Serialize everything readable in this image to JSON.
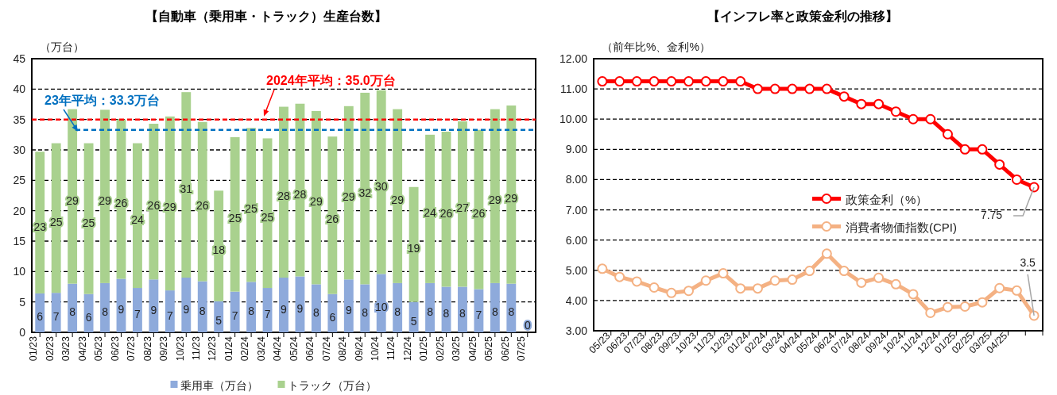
{
  "chart_data": [
    {
      "type": "bar",
      "title": "【自動車（乗用車・トラック）生産台数】",
      "ylabel": "（万台）",
      "stacked": true,
      "grid": "y",
      "legend": "bottom",
      "categories": [
        "01/23",
        "02/23",
        "03/23",
        "04/23",
        "05/23",
        "06/23",
        "07/23",
        "08/23",
        "09/23",
        "10/23",
        "11/23",
        "12/23",
        "01/24",
        "02/24",
        "03/24",
        "04/24",
        "05/24",
        "06/24",
        "07/24",
        "08/24",
        "09/24",
        "10/24",
        "11/24",
        "12/24",
        "01/25",
        "02/25",
        "03/25",
        "04/25",
        "05/25",
        "06/25",
        "07/25"
      ],
      "ylim": [
        0,
        45
      ],
      "yticks": [
        0,
        5,
        10,
        15,
        20,
        25,
        30,
        35,
        40,
        45
      ],
      "series": [
        {
          "name": "乗用車（万台）",
          "color": "#8eaadb",
          "values": [
            6.4,
            6.5,
            8.0,
            6.3,
            8.1,
            8.8,
            7.3,
            8.7,
            6.9,
            9.0,
            8.4,
            5.1,
            6.7,
            8.3,
            7.3,
            9.0,
            9.2,
            7.9,
            6.3,
            8.7,
            7.9,
            9.6,
            8.1,
            5.0,
            8.1,
            7.5,
            7.5,
            7.1,
            8.1,
            8.0,
            0
          ],
          "value_labels": [
            "6",
            "7",
            "8",
            "6",
            "8",
            "9",
            "7",
            "9",
            "7",
            "9",
            "8",
            "5",
            "7",
            "8",
            "7",
            "9",
            "9",
            "8",
            "6",
            "9",
            "8",
            "10",
            "8",
            "5",
            "8",
            "8",
            "8",
            "7",
            "8",
            "8",
            "0"
          ]
        },
        {
          "name": "トラック（万台）",
          "color": "#a9d18e",
          "values": [
            23.3,
            24.6,
            28.7,
            24.8,
            28.5,
            26.2,
            23.8,
            25.6,
            28.6,
            30.5,
            26.2,
            18.2,
            25.4,
            25.3,
            24.6,
            28.1,
            28.4,
            28.5,
            25.9,
            28.5,
            31.5,
            30.2,
            28.6,
            18.9,
            24.4,
            25.5,
            27.2,
            26.2,
            28.6,
            29.3,
            null
          ],
          "value_labels": [
            "23",
            "25",
            "29",
            "25",
            "29",
            "26",
            "24",
            "26",
            "29",
            "31",
            "26",
            "18",
            "25",
            "25",
            "25",
            "28",
            "28",
            "29",
            "26",
            "29",
            "32",
            "30",
            "29",
            "19",
            "24",
            "26",
            "27",
            "26",
            "29",
            "29",
            null
          ]
        }
      ],
      "ref_lines": [
        {
          "axis": "y",
          "value": 35.0,
          "label": "2024年平均：35.0万台",
          "color": "#ff0000",
          "line_style": "dashed"
        },
        {
          "axis": "y",
          "value": 33.3,
          "label": "23年平均：33.3万台",
          "color": "#0070c0",
          "line_style": "dashed"
        }
      ]
    },
    {
      "type": "line",
      "title": "【インフレ率と政策金利の推移】",
      "ylabel": "（前年比%、金利%）",
      "grid": "y",
      "legend": "right",
      "marker": "circle",
      "line_style": "solid",
      "categories": [
        "05/23",
        "06/23",
        "07/23",
        "08/23",
        "09/23",
        "10/23",
        "11/23",
        "12/23",
        "01/24",
        "02/24",
        "03/24",
        "04/24",
        "05/24",
        "06/24",
        "07/24",
        "08/24",
        "09/24",
        "10/24",
        "11/24",
        "12/24",
        "01/25",
        "02/25",
        "03/25",
        "04/25",
        null,
        null
      ],
      "ylim": [
        3,
        12
      ],
      "yticks": [
        {
          "value": 3,
          "label": "3.00"
        },
        {
          "value": 4,
          "label": "4.00"
        },
        {
          "value": 5,
          "label": "5.00"
        },
        {
          "value": 6,
          "label": "6.00"
        },
        {
          "value": 7,
          "label": "7.00"
        },
        {
          "value": 8,
          "label": "8.00"
        },
        {
          "value": 9,
          "label": "9.00"
        },
        {
          "value": 10,
          "label": "10.00"
        },
        {
          "value": 11,
          "label": "11.00"
        },
        {
          "value": 12,
          "label": "12.00"
        }
      ],
      "series": [
        {
          "name": "政策金利（%）",
          "color": "#ff0000",
          "values": [
            11.25,
            11.25,
            11.25,
            11.25,
            11.25,
            11.25,
            11.25,
            11.25,
            11.25,
            11.0,
            11.0,
            11.0,
            11.0,
            11.0,
            10.75,
            10.5,
            10.5,
            10.25,
            10.0,
            10.0,
            9.5,
            9.0,
            9.0,
            8.5,
            8.0,
            7.75
          ],
          "value_labels": [
            null,
            null,
            null,
            null,
            null,
            null,
            null,
            null,
            null,
            null,
            null,
            null,
            null,
            null,
            null,
            null,
            null,
            null,
            null,
            null,
            null,
            null,
            null,
            null,
            null,
            "7.75"
          ]
        },
        {
          "name": "消費者物価指数(CPI)",
          "color": "#f4b183",
          "values": [
            5.05,
            4.78,
            4.63,
            4.43,
            4.25,
            4.32,
            4.66,
            4.9,
            4.4,
            4.4,
            4.66,
            4.69,
            4.98,
            5.55,
            4.98,
            4.59,
            4.75,
            4.54,
            4.21,
            3.59,
            3.78,
            3.8,
            3.94,
            4.41,
            4.33,
            3.5
          ],
          "value_labels": [
            null,
            null,
            null,
            null,
            null,
            null,
            null,
            null,
            null,
            null,
            null,
            null,
            null,
            null,
            null,
            null,
            null,
            null,
            null,
            null,
            null,
            null,
            null,
            null,
            null,
            "3.5"
          ]
        }
      ]
    }
  ]
}
